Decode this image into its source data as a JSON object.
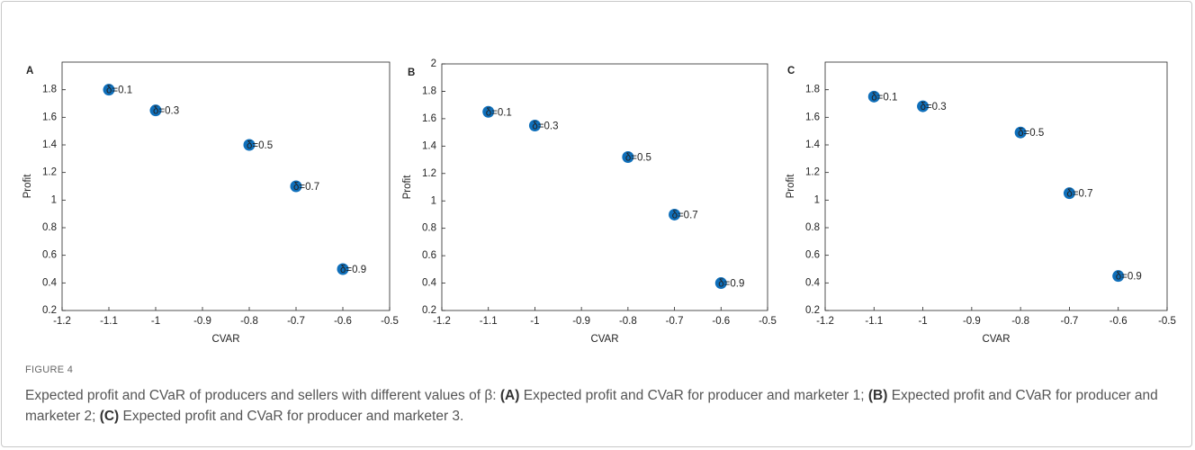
{
  "chart_data": [
    {
      "type": "scatter",
      "title": "A",
      "x_label": "CVAR",
      "y_label": "Profit",
      "color": "#0f6fba",
      "x": [
        -1.1,
        -1,
        -0.8,
        -0.7,
        -0.6
      ],
      "values": [
        1.8,
        1.65,
        1.4,
        1.1,
        0.5
      ],
      "point_labels": [
        "δ=0.1",
        "δ=0.3",
        "δ=0.5",
        "δ=0.7",
        "δ=0.9"
      ],
      "xlim": [
        -1.2,
        -0.5
      ],
      "xticks": [
        -1.2,
        -1.1,
        -1,
        -0.9,
        -0.8,
        -0.7,
        -0.6,
        -0.5
      ],
      "ylim": [
        0.2,
        2.0
      ],
      "yticks": [
        0.2,
        0.4,
        0.6,
        0.8,
        1,
        1.2,
        1.4,
        1.6,
        1.8
      ],
      "grid": false
    },
    {
      "type": "scatter",
      "title": "B",
      "x_label": "CVAR",
      "y_label": "Profit",
      "color": "#0f6fba",
      "x": [
        -1.1,
        -1,
        -0.8,
        -0.7,
        -0.6
      ],
      "values": [
        1.65,
        1.55,
        1.32,
        0.9,
        0.4
      ],
      "point_labels": [
        "δ=0.1",
        "δ=0.3",
        "δ=0.5",
        "δ=0.7",
        "δ=0.9"
      ],
      "xlim": [
        -1.2,
        -0.5
      ],
      "xticks": [
        -1.2,
        -1.1,
        -1,
        -0.9,
        -0.8,
        -0.7,
        -0.6,
        -0.5
      ],
      "ylim": [
        0.2,
        2
      ],
      "yticks": [
        0.2,
        0.4,
        0.6,
        0.8,
        1,
        1.2,
        1.4,
        1.6,
        1.8,
        2
      ],
      "grid": false
    },
    {
      "type": "scatter",
      "title": "C",
      "x_label": "CVAR",
      "y_label": "Profit",
      "color": "#0f6fba",
      "x": [
        -1.1,
        -1,
        -0.8,
        -0.7,
        -0.6
      ],
      "values": [
        1.75,
        1.68,
        1.49,
        1.05,
        0.45
      ],
      "point_labels": [
        "δ=0.1",
        "δ=0.3",
        "δ=0.5",
        "δ=0.7",
        "δ=0.9"
      ],
      "xlim": [
        -1.2,
        -0.5
      ],
      "xticks": [
        -1.2,
        -1.1,
        -1,
        -0.9,
        -0.8,
        -0.7,
        -0.6,
        -0.5
      ],
      "ylim": [
        0.2,
        2.0
      ],
      "yticks": [
        0.2,
        0.4,
        0.6,
        0.8,
        1,
        1.2,
        1.4,
        1.6,
        1.8
      ],
      "grid": false
    }
  ],
  "figure": {
    "label": "FIGURE 4",
    "intro": "Expected profit and CVaR of producers and sellers with different values of β:",
    "items": [
      {
        "label": "(A)",
        "text": "Expected profit and CVaR for producer and marketer 1;"
      },
      {
        "label": "(B)",
        "text": "Expected profit and CVaR for producer and marketer 2;"
      },
      {
        "label": "(C)",
        "text": "Expected profit and CVaR for producer and marketer 3."
      }
    ]
  }
}
